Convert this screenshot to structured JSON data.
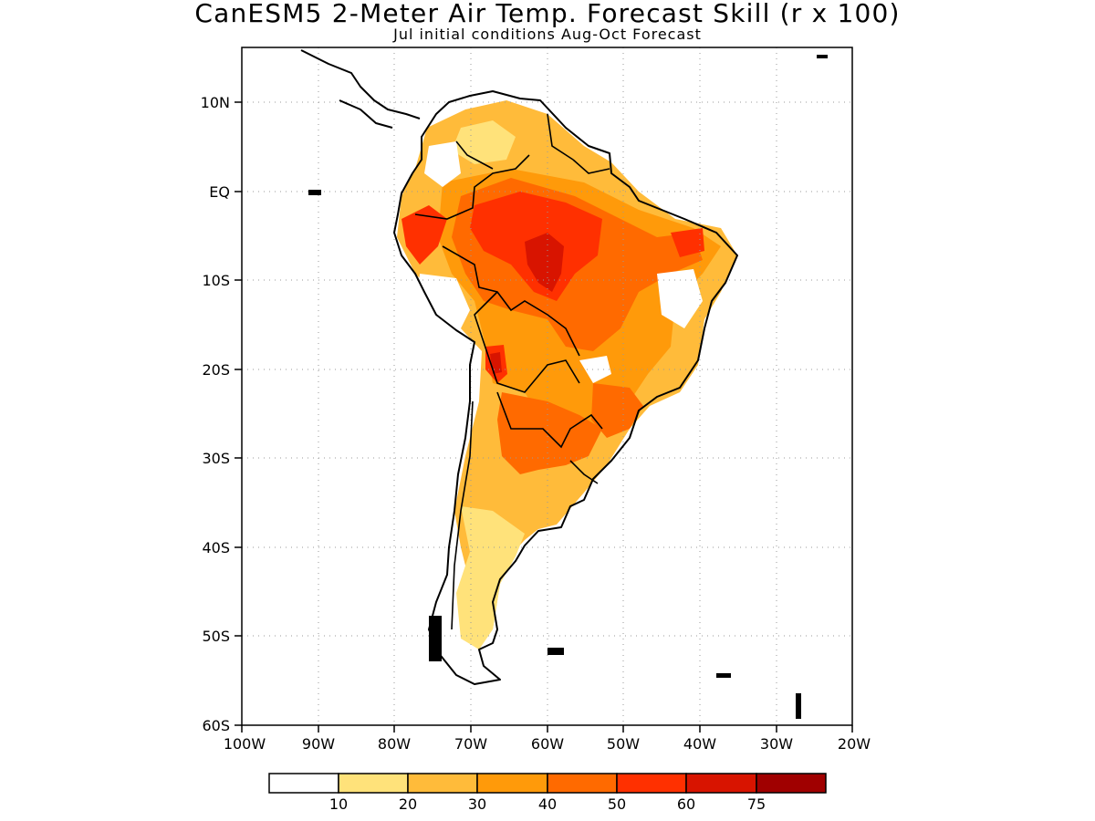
{
  "title": "CanESM5 2-Meter Air Temp. Forecast Skill (r x 100)",
  "subtitle": "Jul initial conditions  Aug-Oct Forecast",
  "axes": {
    "lon_ticks": [
      "100W",
      "90W",
      "80W",
      "70W",
      "60W",
      "50W",
      "40W",
      "30W",
      "20W"
    ],
    "lat_ticks": [
      "10N",
      "EQ",
      "10S",
      "20S",
      "30S",
      "40S",
      "50S",
      "60S"
    ],
    "lon_range": [
      -100,
      -20
    ],
    "lat_range": [
      -60,
      16
    ],
    "grid": "dotted"
  },
  "legend": {
    "colors": [
      "#ffffff",
      "#ffe27a",
      "#ffbb3a",
      "#ff9a0a",
      "#ff6a00",
      "#ff3000",
      "#d81400",
      "#a00000"
    ],
    "labels": [
      "10",
      "20",
      "30",
      "40",
      "50",
      "60",
      "75"
    ]
  },
  "map_fill_colors": {
    "low": "#ffe27a",
    "mid": "#ffbb3a",
    "high": "#ff9a0a",
    "very_high": "#ff6a00",
    "top": "#ff3000",
    "max": "#d81400"
  }
}
